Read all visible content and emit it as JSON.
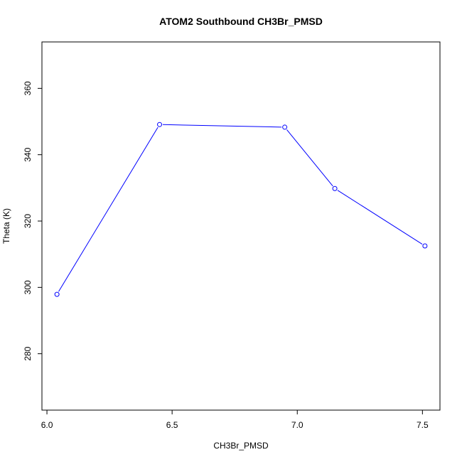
{
  "chart_data": {
    "type": "line",
    "title": "ATOM2 Southbound CH3Br_PMSD",
    "xlabel": "CH3Br_PMSD",
    "ylabel": "Theta (K)",
    "xlim": [
      5.98,
      7.57
    ],
    "ylim": [
      263,
      374
    ],
    "xticks": [
      "6.0",
      "6.5",
      "7.0",
      "7.5"
    ],
    "yticks": [
      "280",
      "300",
      "320",
      "340",
      "360"
    ],
    "grid": false,
    "legend": "none",
    "series": [
      {
        "color": "#0000ff",
        "marker": "open-circle",
        "x": [
          6.04,
          6.45,
          6.95,
          7.15,
          7.51
        ],
        "y": [
          297.9,
          349.1,
          348.3,
          329.8,
          312.5
        ]
      }
    ]
  }
}
